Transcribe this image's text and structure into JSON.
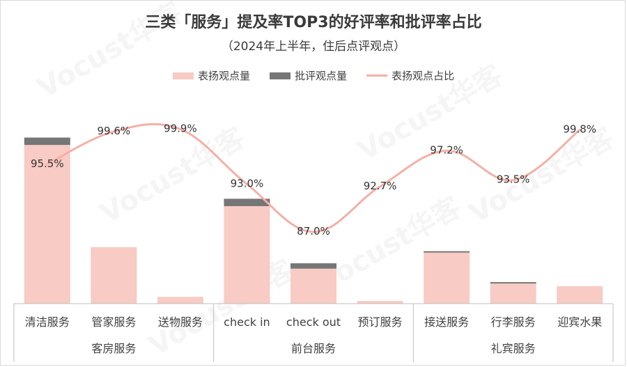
{
  "title": "三类「服务」提及率TOP3的好评率和批评率占比",
  "subtitle": "（2024年上半年，住后点评观点）",
  "legend": {
    "praise_label": "表扬观点量",
    "criticism_label": "批评观点量",
    "ratio_label": "表扬观点占比"
  },
  "colors": {
    "praise": "#f8cbc4",
    "criticism": "#767676",
    "ratio_line": "#f4b0a6",
    "axis": "#bfbfbf",
    "text": "#404040"
  },
  "watermark": "Vocust华客",
  "chart_data": {
    "type": "bar",
    "categories": [
      "清洁服务",
      "管家服务",
      "送物服务",
      "check in",
      "check out",
      "预订服务",
      "接送服务",
      "行李服务",
      "迎宾水果"
    ],
    "groups": [
      {
        "name": "客房服务",
        "members": [
          "清洁服务",
          "管家服务",
          "送物服务"
        ]
      },
      {
        "name": "前台服务",
        "members": [
          "check in",
          "check out",
          "预订服务"
        ]
      },
      {
        "name": "礼宾服务",
        "members": [
          "接送服务",
          "行李服务",
          "迎宾水果"
        ]
      }
    ],
    "series": [
      {
        "name": "表扬观点量",
        "kind": "bar-stack",
        "values": [
          236,
          84,
          10,
          145,
          52,
          4,
          76,
          30,
          26
        ]
      },
      {
        "name": "批评观点量",
        "kind": "bar-stack",
        "values": [
          11,
          0,
          0,
          11,
          8,
          0,
          2,
          2,
          0
        ]
      },
      {
        "name": "表扬观点占比",
        "kind": "line",
        "axis": "secondary",
        "values": [
          95.5,
          99.6,
          99.9,
          93.0,
          87.0,
          92.7,
          97.2,
          93.5,
          99.8
        ],
        "labels": [
          "95.5%",
          "99.6%",
          "99.9%",
          "93.0%",
          "87.0%",
          "92.7%",
          "97.2%",
          "93.5%",
          "99.8%"
        ]
      }
    ],
    "ylim": [
      0,
      260
    ],
    "y2lim": [
      78,
      103
    ],
    "grid": false,
    "legend_position": "top-center"
  }
}
